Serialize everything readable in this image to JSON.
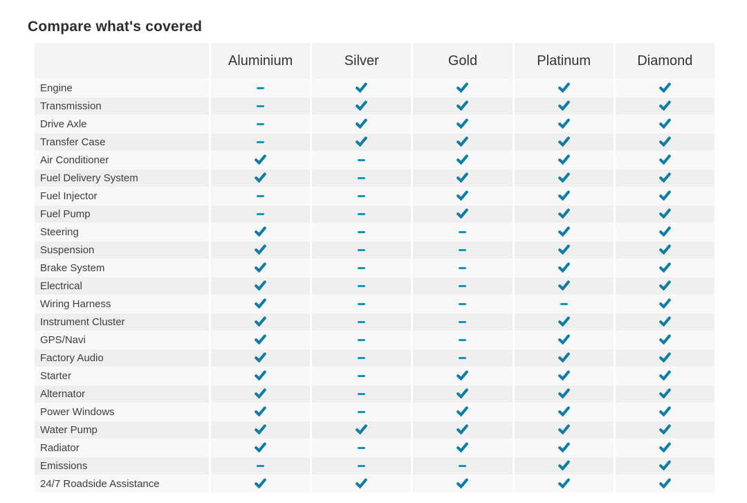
{
  "page": {
    "title": "Compare what's covered"
  },
  "table": {
    "columns": [
      "Aluminium",
      "Silver",
      "Gold",
      "Platinum",
      "Diamond"
    ],
    "rows": [
      {
        "label": "Engine",
        "covered": [
          false,
          true,
          true,
          true,
          true
        ]
      },
      {
        "label": "Transmission",
        "covered": [
          false,
          true,
          true,
          true,
          true
        ]
      },
      {
        "label": "Drive Axle",
        "covered": [
          false,
          true,
          true,
          true,
          true
        ]
      },
      {
        "label": "Transfer Case",
        "covered": [
          false,
          true,
          true,
          true,
          true
        ]
      },
      {
        "label": "Air Conditioner",
        "covered": [
          true,
          false,
          true,
          true,
          true
        ]
      },
      {
        "label": "Fuel Delivery System",
        "covered": [
          true,
          false,
          true,
          true,
          true
        ]
      },
      {
        "label": "Fuel Injector",
        "covered": [
          false,
          false,
          true,
          true,
          true
        ]
      },
      {
        "label": "Fuel Pump",
        "covered": [
          false,
          false,
          true,
          true,
          true
        ]
      },
      {
        "label": "Steering",
        "covered": [
          true,
          false,
          false,
          true,
          true
        ]
      },
      {
        "label": "Suspension",
        "covered": [
          true,
          false,
          false,
          true,
          true
        ]
      },
      {
        "label": "Brake System",
        "covered": [
          true,
          false,
          false,
          true,
          true
        ]
      },
      {
        "label": "Electrical",
        "covered": [
          true,
          false,
          false,
          true,
          true
        ]
      },
      {
        "label": "Wiring Harness",
        "covered": [
          true,
          false,
          false,
          false,
          true
        ]
      },
      {
        "label": "Instrument Cluster",
        "covered": [
          true,
          false,
          false,
          true,
          true
        ]
      },
      {
        "label": "GPS/Navi",
        "covered": [
          true,
          false,
          false,
          true,
          true
        ]
      },
      {
        "label": "Factory Audio",
        "covered": [
          true,
          false,
          false,
          true,
          true
        ]
      },
      {
        "label": "Starter",
        "covered": [
          true,
          false,
          true,
          true,
          true
        ]
      },
      {
        "label": "Alternator",
        "covered": [
          true,
          false,
          true,
          true,
          true
        ]
      },
      {
        "label": "Power Windows",
        "covered": [
          true,
          false,
          true,
          true,
          true
        ]
      },
      {
        "label": "Water Pump",
        "covered": [
          true,
          true,
          true,
          true,
          true
        ]
      },
      {
        "label": "Radiator",
        "covered": [
          true,
          false,
          true,
          true,
          true
        ]
      },
      {
        "label": "Emissions",
        "covered": [
          false,
          false,
          false,
          true,
          true
        ]
      },
      {
        "label": "24/7 Roadside Assistance",
        "covered": [
          true,
          true,
          true,
          true,
          true
        ]
      }
    ]
  },
  "icons": {
    "covered": "check-icon",
    "not_covered": "dash-icon"
  },
  "colors": {
    "check": "#0e7da6",
    "dash": "#1392ba",
    "header_bg": "#f4f4f4",
    "row_odd_bg": "#f8f8f8",
    "row_even_bg": "#efefef",
    "title_text": "#2d2d2d",
    "header_text": "#333333",
    "row_text": "#3d3d3d"
  }
}
